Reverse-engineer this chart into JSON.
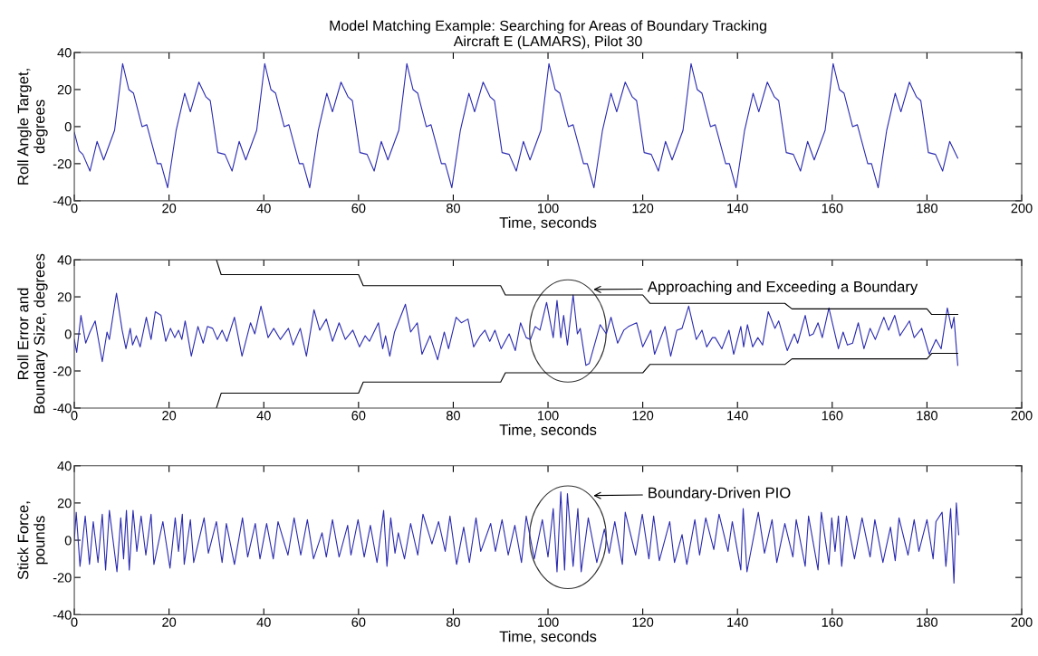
{
  "chart_data": [
    {
      "type": "line",
      "title": "Model Matching Example: Searching for Areas of Boundary Tracking\nAircraft E (LAMARS), Pilot 30",
      "xlabel": "Time, seconds",
      "ylabel": "Roll Angle Target,\ndegrees",
      "xlim": [
        0,
        200
      ],
      "ylim": [
        -40,
        40
      ],
      "xticks": [
        0,
        20,
        40,
        60,
        80,
        100,
        120,
        140,
        160,
        180,
        200
      ],
      "yticks": [
        -40,
        -20,
        0,
        20,
        40
      ],
      "series": [
        {
          "color": "#2a2ab0",
          "x": [
            0,
            1,
            1.8,
            3.3,
            4.8,
            6.2,
            8.5,
            10.2,
            11.5,
            12.5,
            14.3,
            15.3,
            17.5,
            18.3,
            19.7,
            21.5,
            23.3,
            24.5,
            26.3,
            27.8,
            28.7,
            30.3,
            31.8,
            33.3,
            34.8,
            36.2,
            38.5,
            40.2,
            41.5,
            42.5,
            44.3,
            45.3,
            47.5,
            48.3,
            49.7,
            51.5,
            53.3,
            54.5,
            56.3,
            57.8,
            58.7,
            60.3,
            61.8,
            63.3,
            64.8,
            66.2,
            68.5,
            70.2,
            71.5,
            72.5,
            74.3,
            75.3,
            77.5,
            78.3,
            79.7,
            81.5,
            83.3,
            84.5,
            86.3,
            87.8,
            88.7,
            90.3,
            91.8,
            93.3,
            94.8,
            96.2,
            98.5,
            100.2,
            101.5,
            102.5,
            104.3,
            105.3,
            107.5,
            108.3,
            109.7,
            111.5,
            113.3,
            114.5,
            116.3,
            117.8,
            118.7,
            120.3,
            121.8,
            123.3,
            124.8,
            126.2,
            128.5,
            130.2,
            131.5,
            132.5,
            134.3,
            135.3,
            137.5,
            138.3,
            139.7,
            141.5,
            143.3,
            144.5,
            146.3,
            147.8,
            148.7,
            150.3,
            151.8,
            153.3,
            154.8,
            156.2,
            158.5,
            160.2,
            161.5,
            162.5,
            164.3,
            165.3,
            167.5,
            168.3,
            169.7,
            171.5,
            173.3,
            174.5,
            176.3,
            177.8,
            178.7,
            180.3,
            181.8,
            183.3,
            184.8,
            186.5
          ],
          "values": [
            -3,
            -13,
            -15,
            -24,
            -8,
            -18,
            -2,
            34,
            20,
            18,
            0,
            1,
            -20,
            -20,
            -33,
            -2,
            18,
            8,
            24,
            16,
            14,
            -14,
            -15,
            -24,
            -8,
            -18,
            -2,
            34,
            20,
            18,
            0,
            1,
            -20,
            -20,
            -33,
            -2,
            18,
            8,
            24,
            16,
            14,
            -14,
            -15,
            -24,
            -8,
            -18,
            -2,
            34,
            20,
            18,
            0,
            1,
            -20,
            -20,
            -33,
            -2,
            18,
            8,
            24,
            16,
            14,
            -14,
            -15,
            -24,
            -8,
            -18,
            -2,
            34,
            20,
            18,
            0,
            1,
            -20,
            -20,
            -33,
            -2,
            18,
            8,
            24,
            16,
            14,
            -14,
            -15,
            -24,
            -8,
            -18,
            -2,
            34,
            20,
            18,
            0,
            1,
            -20,
            -20,
            -33,
            -2,
            18,
            8,
            24,
            16,
            14,
            -14,
            -15,
            -24,
            -8,
            -18,
            -2,
            34,
            20,
            18,
            0,
            1,
            -20,
            -20,
            -33,
            -2,
            18,
            8,
            24,
            16,
            14,
            -14,
            -15,
            -24,
            -8,
            -17
          ]
        }
      ]
    },
    {
      "type": "line",
      "xlabel": "Time, seconds",
      "ylabel": "Roll Error and\nBoundary Size, degrees",
      "xlim": [
        0,
        200
      ],
      "ylim": [
        -40,
        40
      ],
      "xticks": [
        0,
        20,
        40,
        60,
        80,
        100,
        120,
        140,
        160,
        180,
        200
      ],
      "yticks": [
        -40,
        -20,
        0,
        20,
        40
      ],
      "annotations": [
        "Approaching and Exceeding a Boundary"
      ],
      "series": [
        {
          "color": "#2a2ab0",
          "x": [
            0,
            0.5,
            1.4,
            2.4,
            3.3,
            4.4,
            5.9,
            6.9,
            7.4,
            8.9,
            10.1,
            10.9,
            11.8,
            12.3,
            13.1,
            13.9,
            15.2,
            16.2,
            17.1,
            18.3,
            19.3,
            20.3,
            21.2,
            22.0,
            22.7,
            23.4,
            24.7,
            26.1,
            27.2,
            28.1,
            29.2,
            30.2,
            31.2,
            32.2,
            33.8,
            35.4,
            37.2,
            38.1,
            39.4,
            40.9,
            42.1,
            43.5,
            45.2,
            46.2,
            47.7,
            49.0,
            50.6,
            51.8,
            53.2,
            54.5,
            55.9,
            57.2,
            58.8,
            60.2,
            61.4,
            62.3,
            64.2,
            65.1,
            65.7,
            66.6,
            67.6,
            69.9,
            71.0,
            72.4,
            73.4,
            75.1,
            76.7,
            78.1,
            79.0,
            80.6,
            81.7,
            83.1,
            84.3,
            85.7,
            86.7,
            87.7,
            88.8,
            90.1,
            91.8,
            93.1,
            94.2,
            95.4,
            96.3,
            97.3,
            98.3,
            99.7,
            101.1,
            101.9,
            102.7,
            103.3,
            104.1,
            105.3,
            106.2,
            106.8,
            108.0,
            108.7,
            111.0,
            112.3,
            113.3,
            114.7,
            116.0,
            117.0,
            118.7,
            120.0,
            121.7,
            122.5,
            124.7,
            125.9,
            127.2,
            128.3,
            129.7,
            131.3,
            132.5,
            133.5,
            134.7,
            135.3,
            136.7,
            138.2,
            139.2,
            140.7,
            141.3,
            142.1,
            143.2,
            144.3,
            145.3,
            146.5,
            147.9,
            148.7,
            150.5,
            152.0,
            152.7,
            154.3,
            155.2,
            156.0,
            157.0,
            157.9,
            159.3,
            161.3,
            162.3,
            163.2,
            164.3,
            165.5,
            166.7,
            168.0,
            169.1,
            170.9,
            171.9,
            173.2,
            174.3,
            176.3,
            177.3,
            178.9,
            180.5,
            181.9,
            183.0,
            184.3,
            185.2,
            185.7,
            186.5
          ],
          "values": [
            -3,
            -10,
            10,
            -5,
            1,
            7,
            -15,
            1,
            -3,
            22,
            2,
            -8,
            3,
            -6,
            -1,
            -7,
            9,
            -3,
            12,
            10,
            -4,
            3,
            -2,
            2,
            -3,
            7,
            -12,
            4,
            -5,
            4,
            3,
            -3,
            2,
            -4,
            9,
            -12,
            6,
            0,
            15,
            -2,
            3,
            -3,
            3,
            -6,
            3,
            -12,
            13,
            2,
            8,
            -4,
            6,
            -3,
            2,
            -7,
            -1,
            -4,
            6,
            -8,
            -1,
            -12,
            1,
            16,
            1,
            6,
            -11,
            -1,
            -14,
            1,
            -8,
            9,
            6,
            8,
            -7,
            -1,
            2,
            -4,
            2,
            -8,
            0,
            -9,
            6,
            -2,
            -3,
            4,
            2,
            17,
            -2,
            18,
            -2,
            10,
            -6,
            21,
            0,
            3,
            -17,
            -16,
            5,
            0,
            9,
            -5,
            2,
            4,
            6,
            -7,
            2,
            -11,
            4,
            -12,
            2,
            3,
            15,
            -3,
            2,
            -7,
            -2,
            -2,
            -8,
            2,
            -11,
            4,
            -7,
            5,
            -7,
            -2,
            -6,
            12,
            3,
            7,
            -9,
            0,
            -5,
            10,
            -1,
            0,
            6,
            -2,
            14,
            -8,
            1,
            -6,
            -5,
            6,
            -8,
            3,
            -3,
            9,
            2,
            10,
            -1,
            7,
            -2,
            3,
            -11,
            -3,
            -8,
            14,
            3,
            9,
            -17
          ]
        },
        {
          "color": "#000000",
          "x": [
            30,
            31,
            60,
            61,
            90,
            91,
            120,
            121.5,
            150,
            151.5,
            180,
            181,
            186.5
          ],
          "values": [
            40,
            32,
            32,
            26,
            26,
            21,
            21,
            16.5,
            16.5,
            13.5,
            13.5,
            10.5,
            10.5
          ]
        },
        {
          "color": "#000000",
          "x": [
            30,
            31,
            60,
            61,
            90,
            91,
            120,
            121.5,
            150,
            151.5,
            180,
            181,
            186.5
          ],
          "values": [
            -40,
            -32,
            -32,
            -26,
            -26,
            -21,
            -21,
            -16.5,
            -16.5,
            -13.5,
            -13.5,
            -10.5,
            -10.5
          ]
        }
      ]
    },
    {
      "type": "line",
      "xlabel": "Time, seconds",
      "ylabel": "Stick Force,\npounds",
      "xlim": [
        0,
        200
      ],
      "ylim": [
        -40,
        40
      ],
      "xticks": [
        0,
        20,
        40,
        60,
        80,
        100,
        120,
        140,
        160,
        180,
        200
      ],
      "yticks": [
        -40,
        -20,
        0,
        20,
        40
      ],
      "annotations": [
        "Boundary-Driven PIO"
      ],
      "series": [
        {
          "color": "#2a2ab0",
          "x": [
            0,
            0.4,
            1.2,
            2.3,
            3.2,
            4.0,
            5.0,
            5.9,
            6.6,
            7.4,
            9.0,
            9.8,
            10.4,
            11.0,
            11.6,
            12.4,
            13.2,
            14.1,
            15.1,
            16.2,
            16.8,
            18.7,
            20.2,
            21.3,
            22.0,
            22.8,
            23.2,
            24.5,
            25.2,
            27.4,
            28.3,
            30.0,
            31.2,
            32.1,
            33.8,
            35.5,
            36.6,
            38.2,
            39.2,
            40.6,
            42.0,
            43.0,
            45.1,
            46.4,
            47.8,
            49.2,
            50.5,
            52.3,
            53.2,
            54.5,
            55.9,
            57.7,
            58.4,
            59.9,
            61.2,
            62.5,
            63.9,
            65.3,
            66.0,
            66.8,
            67.7,
            68.4,
            69.7,
            71.0,
            72.5,
            73.6,
            75.5,
            76.9,
            78.3,
            79.3,
            80.7,
            82.2,
            83.4,
            84.8,
            85.8,
            87.9,
            88.9,
            90.3,
            91.6,
            93.0,
            94.4,
            95.4,
            97.1,
            98.8,
            100.0,
            101.1,
            101.9,
            102.7,
            103.5,
            104.1,
            105.3,
            106.3,
            107.0,
            108.5,
            110.3,
            111.9,
            112.9,
            114.1,
            115.7,
            116.3,
            118.5,
            119.9,
            121.3,
            122.3,
            123.5,
            125.7,
            126.7,
            128.3,
            129.3,
            131.0,
            132.0,
            133.3,
            135.0,
            136.1,
            138.0,
            138.9,
            140.7,
            141.2,
            142.0,
            144.4,
            145.7,
            147.3,
            148.3,
            150.0,
            151.7,
            152.4,
            154.3,
            155.0,
            157.0,
            157.7,
            159.3,
            159.9,
            160.6,
            161.3,
            162.0,
            163.0,
            164.7,
            166.3,
            168.0,
            169.0,
            170.7,
            172.3,
            173.3,
            174.1,
            176.0,
            177.3,
            178.3,
            180.0,
            181.3,
            181.9,
            183.2,
            184.0,
            185.0,
            185.7,
            186.2,
            186.7
          ],
          "values": [
            0,
            15,
            -14,
            13,
            -13,
            10,
            -12,
            14,
            -16,
            16,
            -17,
            12,
            -10,
            16,
            -16,
            16,
            -6,
            13,
            -8,
            14,
            -13,
            10,
            -15,
            12,
            -6,
            14,
            -13,
            11,
            -12,
            12,
            -7,
            10,
            -12,
            9,
            -13,
            12,
            -9,
            9,
            -10,
            9,
            -10,
            10,
            -8,
            12,
            -8,
            11,
            -10,
            4,
            -9,
            11,
            -9,
            8,
            -8,
            11,
            -9,
            8,
            -12,
            16,
            -14,
            12,
            -7,
            4,
            -10,
            9,
            -8,
            14,
            -2,
            10,
            -6,
            13,
            -13,
            7,
            -12,
            12,
            -6,
            9,
            -6,
            11,
            -8,
            8,
            -12,
            13,
            -10,
            11,
            -9,
            17,
            -17,
            26,
            -16,
            25,
            -14,
            17,
            -17,
            12,
            -12,
            6,
            -7,
            10,
            -13,
            15,
            -8,
            14,
            -10,
            13,
            -11,
            10,
            -12,
            3,
            -13,
            11,
            -8,
            12,
            -5,
            14,
            -6,
            10,
            -16,
            17,
            -17,
            15,
            -7,
            11,
            -12,
            9,
            -9,
            11,
            -14,
            13,
            -16,
            15,
            -13,
            12,
            -6,
            13,
            -14,
            13,
            -10,
            12,
            -9,
            11,
            -12,
            7,
            -11,
            12,
            -8,
            11,
            -6,
            11,
            -10,
            10,
            15,
            -14,
            17,
            -23,
            20,
            3
          ]
        }
      ]
    }
  ]
}
